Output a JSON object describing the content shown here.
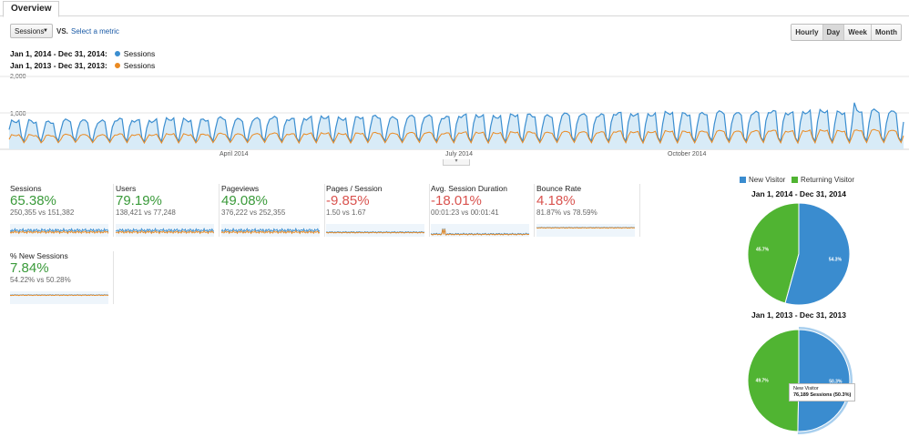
{
  "tabs": {
    "overview": "Overview"
  },
  "controls": {
    "metric": "Sessions",
    "vs": "VS.",
    "select_metric": "Select a metric",
    "granularity": [
      "Hourly",
      "Day",
      "Week",
      "Month"
    ],
    "active_granularity": "Day"
  },
  "legend": {
    "current": {
      "range": "Jan 1, 2014 - Dec 31, 2014:",
      "series": "Sessions",
      "color": "#3b8ed0"
    },
    "previous": {
      "range": "Jan 1, 2013 - Dec 31, 2013:",
      "series": "Sessions",
      "color": "#ea8a22"
    }
  },
  "chart_data": {
    "type": "line",
    "y_ticks": [
      "2,000",
      "1,000"
    ],
    "x_ticks": [
      "April 2014",
      "July 2014",
      "October 2014"
    ],
    "ylim": [
      0,
      2000
    ],
    "pattern": "weekly cycle, one point per day",
    "series": [
      {
        "name": "Sessions",
        "range": "Jan 1, 2014 - Dec 31, 2014",
        "color": "#3b8ed0",
        "weekday_level_start": 750,
        "weekday_level_end": 1050,
        "weekend_low": 220,
        "peak": 1280
      },
      {
        "name": "Sessions",
        "range": "Jan 1, 2013 - Dec 31, 2013",
        "color": "#ea8a22",
        "weekday_level_start": 380,
        "weekday_level_end": 520,
        "weekend_low": 180
      }
    ]
  },
  "scorecards": [
    {
      "label": "Sessions",
      "change": "65.38%",
      "direction": "up",
      "compare": "250,355 vs 151,382"
    },
    {
      "label": "Users",
      "change": "79.19%",
      "direction": "up",
      "compare": "138,421 vs 77,248"
    },
    {
      "label": "Pageviews",
      "change": "49.08%",
      "direction": "up",
      "compare": "376,222 vs 252,355"
    },
    {
      "label": "Pages / Session",
      "change": "-9.85%",
      "direction": "down",
      "compare": "1.50 vs 1.67"
    },
    {
      "label": "Avg. Session Duration",
      "change": "-18.01%",
      "direction": "down",
      "compare": "00:01:23 vs 00:01:41"
    },
    {
      "label": "Bounce Rate",
      "change": "4.18%",
      "direction": "down",
      "compare": "81.87% vs 78.59%"
    },
    {
      "label": "% New Sessions",
      "change": "7.84%",
      "direction": "up",
      "compare": "54.22% vs 50.28%"
    }
  ],
  "pies": {
    "legend": [
      {
        "label": "New Visitor",
        "color": "#3a8ccf"
      },
      {
        "label": "Returning Visitor",
        "color": "#50b432"
      }
    ],
    "charts": [
      {
        "title": "Jan 1, 2014 - Dec 31, 2014",
        "new_pct": 54.3,
        "returning_pct": 45.7,
        "new_label": "54.3%",
        "returning_label": "45.7%"
      },
      {
        "title": "Jan 1, 2013 - Dec 31, 2013",
        "new_pct": 50.3,
        "returning_pct": 49.7,
        "new_label": "50.3%",
        "returning_label": "49.7%"
      }
    ],
    "tooltip": {
      "title": "New Visitor",
      "value": "76,189 Sessions (50.3%)"
    }
  }
}
